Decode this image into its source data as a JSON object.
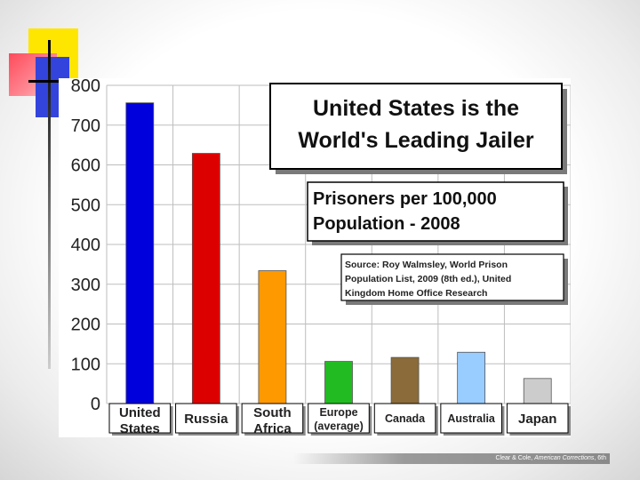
{
  "chart_data": {
    "type": "bar",
    "title_lines": [
      "United States is the",
      "World's Leading Jailer"
    ],
    "subtitle_lines": [
      "Prisoners per 100,000",
      "Population - 2008"
    ],
    "source_lines": [
      "Source: Roy Walmsley, World Prison",
      "Population List, 2009 (8th ed.), United",
      "Kingdom Home Office Research"
    ],
    "categories": [
      [
        "United",
        "States"
      ],
      [
        "Russia"
      ],
      [
        "South",
        "Africa"
      ],
      [
        "Europe",
        "(average)"
      ],
      [
        "Canada"
      ],
      [
        "Australia"
      ],
      [
        "Japan"
      ]
    ],
    "values": [
      756,
      629,
      334,
      106,
      116,
      129,
      63
    ],
    "colors": [
      "#0000dd",
      "#dd0000",
      "#ff9900",
      "#22bb22",
      "#8b6b3a",
      "#99ccff",
      "#cccccc"
    ],
    "yticks": [
      0,
      100,
      200,
      300,
      400,
      500,
      600,
      700,
      800
    ],
    "ylim": [
      0,
      800
    ],
    "grid": true
  },
  "footer": {
    "citation": "Clear & Cole, ",
    "citation_italic": "American Corrections",
    "citation_end": ", 6th"
  }
}
